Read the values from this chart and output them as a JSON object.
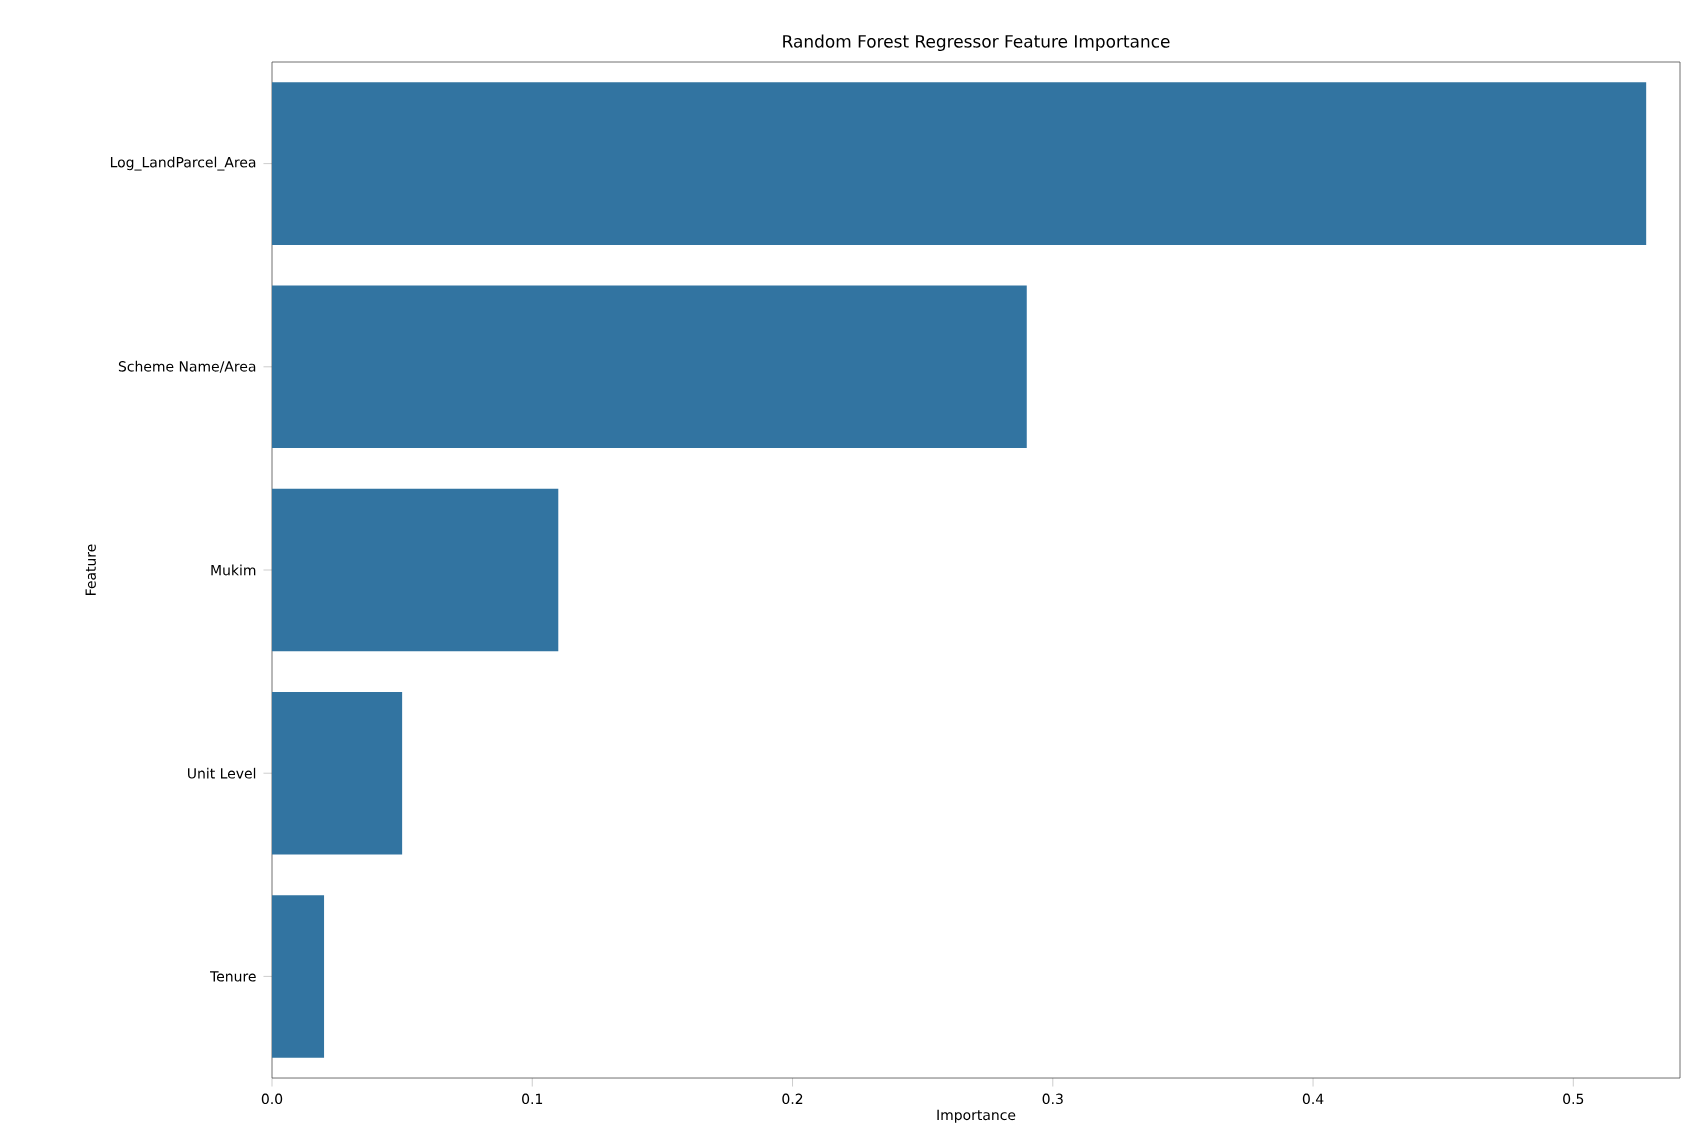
{
  "chart_data": {
    "type": "bar",
    "orientation": "horizontal",
    "title": "Random Forest Regressor Feature Importance",
    "xlabel": "Importance",
    "ylabel": "Feature",
    "categories": [
      "Log_LandParcel_Area",
      "Scheme Name/Area",
      "Mukim",
      "Unit Level",
      "Tenure"
    ],
    "values": [
      0.528,
      0.29,
      0.11,
      0.05,
      0.02
    ],
    "color": "#3274a1",
    "xlim": [
      0,
      0.541
    ],
    "xticks": [
      {
        "value": 0,
        "label": "0.0"
      },
      0.1,
      0.2,
      0.3,
      0.4,
      0.5
    ],
    "grid": false
  }
}
